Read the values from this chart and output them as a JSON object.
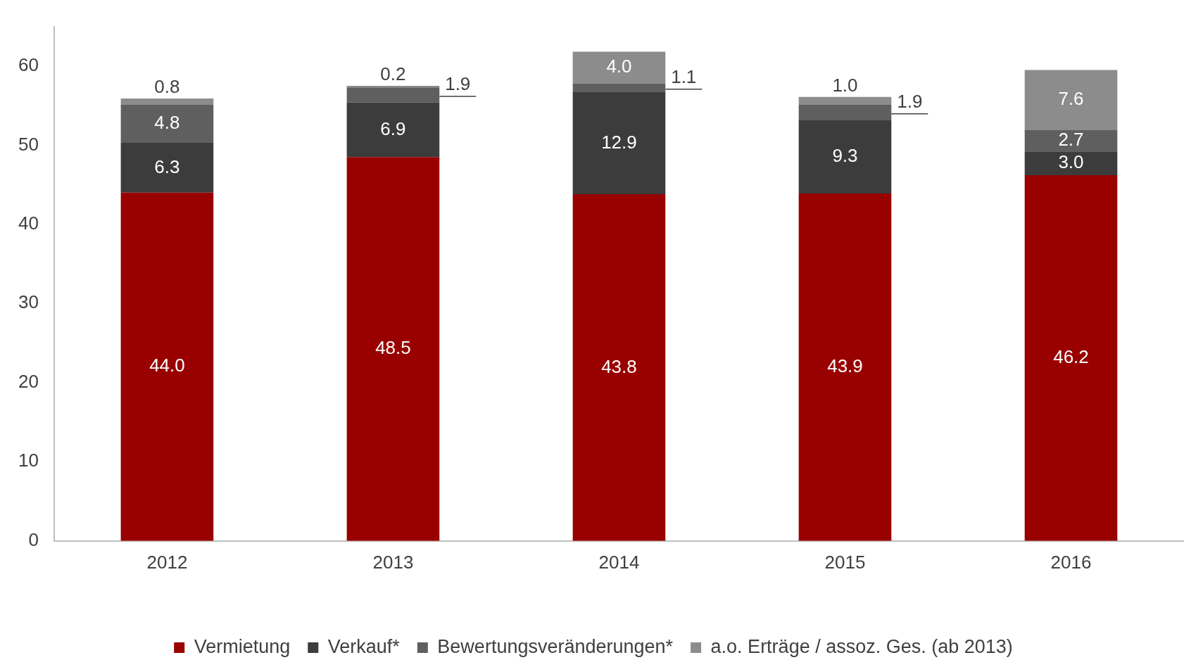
{
  "chart_data": {
    "type": "bar",
    "stacked": true,
    "categories": [
      "2012",
      "2013",
      "2014",
      "2015",
      "2016"
    ],
    "series": [
      {
        "name": "Vermietung",
        "color": "#990000",
        "values": [
          44.0,
          48.5,
          43.8,
          43.9,
          46.2
        ],
        "value_labels": [
          "44.0",
          "48.5",
          "43.8",
          "43.9",
          "46.2"
        ]
      },
      {
        "name": "Verkauf*",
        "color": "#3c3c3c",
        "values": [
          6.3,
          6.9,
          12.9,
          9.3,
          3.0
        ],
        "value_labels": [
          "6.3",
          "6.9",
          "12.9",
          "9.3",
          "3.0"
        ]
      },
      {
        "name": "Bewertungsveränderungen*",
        "color": "#5f5f5f",
        "values": [
          4.8,
          1.9,
          1.1,
          1.9,
          2.7
        ],
        "value_labels": [
          "4.8",
          "1.9",
          "1.1",
          "1.9",
          "2.7"
        ]
      },
      {
        "name": "a.o. Erträge / assoz. Ges. (ab 2013)",
        "color": "#8c8c8c",
        "values": [
          0.8,
          0.2,
          4.0,
          1.0,
          7.6
        ],
        "value_labels": [
          "0.8",
          "0.2",
          "4.0",
          "1.0",
          "7.6"
        ]
      }
    ],
    "ylim": [
      0,
      65
    ],
    "yticks": [
      0,
      10,
      20,
      30,
      40,
      50,
      60
    ],
    "grid": false,
    "legend": "bottom"
  }
}
